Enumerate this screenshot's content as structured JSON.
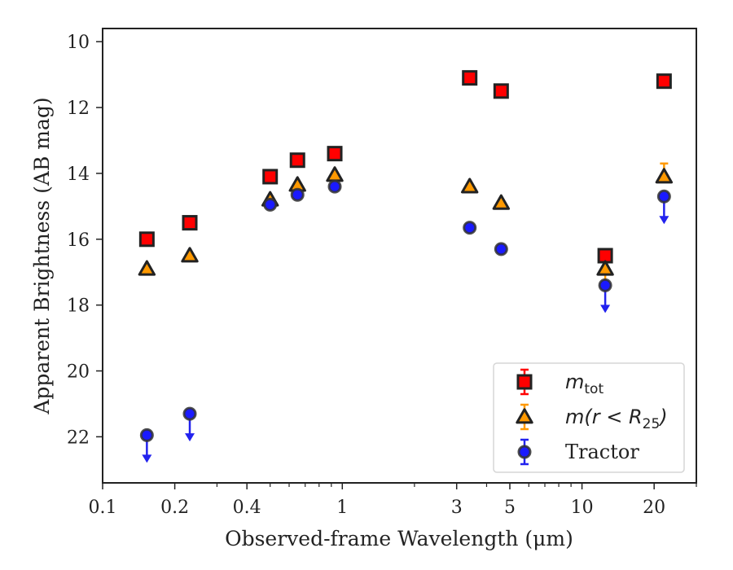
{
  "chart_data": {
    "type": "scatter",
    "title": "",
    "xlabel": "Observed-frame Wavelength (μm)",
    "ylabel": "Apparent Brightness (AB mag)",
    "xscale": "log",
    "xlim": [
      0.1,
      30
    ],
    "ylim": [
      23.4,
      9.6
    ],
    "y_inverted": true,
    "grid": false,
    "legend_position": "bottom-right",
    "xticks": [
      {
        "value": 0.1,
        "label": "0.1"
      },
      {
        "value": 0.2,
        "label": "0.2"
      },
      {
        "value": 0.4,
        "label": "0.4"
      },
      {
        "value": 1,
        "label": "1"
      },
      {
        "value": 3,
        "label": "3"
      },
      {
        "value": 5,
        "label": "5"
      },
      {
        "value": 10,
        "label": "10"
      },
      {
        "value": 20,
        "label": "20"
      }
    ],
    "yticks": [
      {
        "value": 10,
        "label": "10"
      },
      {
        "value": 12,
        "label": "12"
      },
      {
        "value": 14,
        "label": "14"
      },
      {
        "value": 16,
        "label": "16"
      },
      {
        "value": 18,
        "label": "18"
      },
      {
        "value": 20,
        "label": "20"
      },
      {
        "value": 22,
        "label": "22"
      }
    ],
    "series": [
      {
        "name": "m_tot",
        "legend_label": {
          "main": "m",
          "sub": "tot"
        },
        "marker": "square",
        "color": "#ff0000",
        "edge_color": "#222222",
        "errorbar_color": "#ff0000",
        "points": [
          {
            "x": 0.153,
            "y": 16.0
          },
          {
            "x": 0.231,
            "y": 15.5
          },
          {
            "x": 0.5,
            "y": 14.1
          },
          {
            "x": 0.65,
            "y": 13.6
          },
          {
            "x": 0.93,
            "y": 13.4
          },
          {
            "x": 3.4,
            "y": 11.1
          },
          {
            "x": 4.6,
            "y": 11.5
          },
          {
            "x": 12.5,
            "y": 16.5
          },
          {
            "x": 22.0,
            "y": 11.2
          }
        ]
      },
      {
        "name": "m(r < R25)",
        "legend_label": {
          "main": "m(r < R",
          "sub": "25",
          "suffix": ")"
        },
        "marker": "triangle",
        "color": "#ff9900",
        "edge_color": "#222222",
        "errorbar_color": "#ff9900",
        "points": [
          {
            "x": 0.153,
            "y": 16.9
          },
          {
            "x": 0.231,
            "y": 16.5
          },
          {
            "x": 0.5,
            "y": 14.8
          },
          {
            "x": 0.65,
            "y": 14.35
          },
          {
            "x": 0.93,
            "y": 14.05
          },
          {
            "x": 3.4,
            "y": 14.4
          },
          {
            "x": 4.6,
            "y": 14.9
          },
          {
            "x": 12.5,
            "y": 16.9,
            "yerr_low": 0.5
          },
          {
            "x": 22.0,
            "y": 14.1,
            "yerr_high": 0.4
          }
        ]
      },
      {
        "name": "Tractor",
        "legend_label": {
          "main": "Tractor"
        },
        "marker": "circle",
        "color": "#1a1aff",
        "edge_color": "#333333",
        "errorbar_color": "#2222ee",
        "points": [
          {
            "x": 0.153,
            "y": 21.95,
            "upper_limit": true
          },
          {
            "x": 0.231,
            "y": 21.3,
            "upper_limit": true
          },
          {
            "x": 0.5,
            "y": 14.95
          },
          {
            "x": 0.65,
            "y": 14.65
          },
          {
            "x": 0.93,
            "y": 14.4
          },
          {
            "x": 3.4,
            "y": 15.65
          },
          {
            "x": 4.6,
            "y": 16.3
          },
          {
            "x": 12.5,
            "y": 17.4,
            "upper_limit": true
          },
          {
            "x": 22.0,
            "y": 14.7,
            "upper_limit": true
          }
        ]
      }
    ]
  }
}
